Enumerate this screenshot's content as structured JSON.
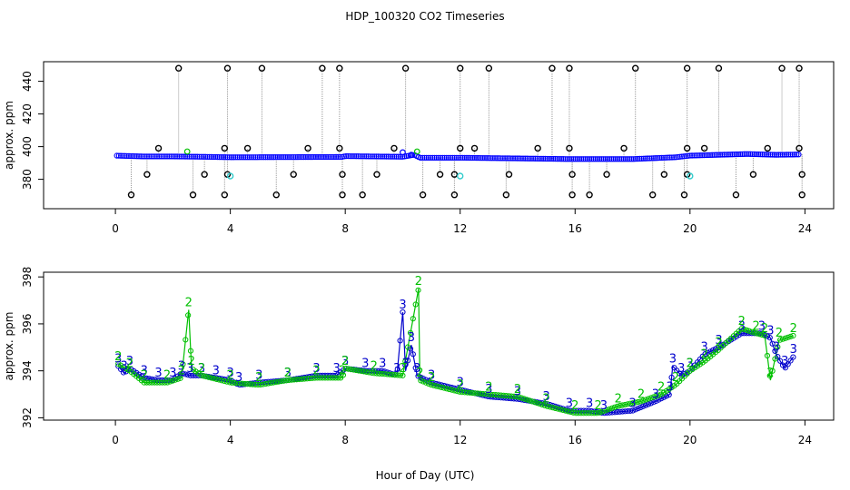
{
  "colors": {
    "background": "#ffffff",
    "instr1_points": "#0000ff",
    "instr2_points": "#00c000",
    "instr3_points": "#0000cc",
    "cal_black": "#000000",
    "cal_cyan": "#33cccc",
    "connector": "#999999"
  },
  "chart_data": {
    "type": "scatter",
    "title": "HDP_100320  CO2 Timeseries",
    "xlabel": "Hour of Day (UTC)",
    "panels": [
      {
        "name": "top",
        "ylabel": "approx. ppm",
        "xlim": [
          -2.5,
          25
        ],
        "ylim": [
          362,
          452
        ],
        "x_ticks": [
          0,
          4,
          8,
          12,
          16,
          20,
          24
        ],
        "y_ticks": [
          380,
          400,
          420,
          440
        ],
        "baseline": [
          [
            0,
            394.5
          ],
          [
            1,
            394
          ],
          [
            2,
            394
          ],
          [
            3,
            393.8
          ],
          [
            4,
            393.5
          ],
          [
            6,
            393.6
          ],
          [
            7.9,
            393.7
          ],
          [
            8,
            394.2
          ],
          [
            9,
            394
          ],
          [
            10,
            393.8
          ],
          [
            10.4,
            395
          ],
          [
            10.6,
            393.2
          ],
          [
            12,
            393.2
          ],
          [
            14,
            392.8
          ],
          [
            15.8,
            392.4
          ],
          [
            16.5,
            392.4
          ],
          [
            18,
            392.4
          ],
          [
            19.5,
            393.5
          ],
          [
            20,
            394.5
          ],
          [
            21,
            395
          ],
          [
            22,
            395.5
          ],
          [
            23,
            395
          ],
          [
            23.8,
            395.2
          ]
        ],
        "cal_high": [
          2.2,
          3.9,
          5.1,
          7.2,
          7.8,
          10.1,
          12.0,
          13.0,
          15.2,
          15.8,
          18.1,
          19.9,
          21.0,
          23.2,
          23.8
        ],
        "cal_high_value": 448,
        "cal_mid": [
          1.5,
          3.8,
          4.6,
          6.7,
          7.8,
          9.7,
          12.0,
          12.5,
          14.7,
          15.8,
          17.7,
          19.9,
          20.5,
          22.7,
          23.8
        ],
        "cal_mid_value": 399,
        "cal_low1": [
          1.1,
          3.1,
          3.9,
          6.2,
          7.9,
          9.1,
          11.3,
          11.8,
          13.7,
          15.9,
          17.1,
          19.1,
          19.9,
          22.2,
          23.9
        ],
        "cal_low1_value": 383,
        "cal_low2": [
          0.55,
          2.7,
          3.8,
          5.6,
          7.9,
          8.6,
          10.7,
          11.8,
          13.6,
          15.9,
          16.5,
          18.7,
          19.8,
          21.6,
          23.9
        ],
        "cal_low2_value": 370.5,
        "cyan_points": [
          [
            4.0,
            382
          ],
          [
            12.0,
            382
          ],
          [
            20.0,
            382
          ]
        ],
        "green_spikes": [
          [
            2.5,
            397
          ],
          [
            10.5,
            397
          ]
        ],
        "blue_spikes": [
          [
            10.0,
            396.5
          ],
          [
            10.3,
            395
          ]
        ]
      },
      {
        "name": "bottom",
        "ylabel": "approx. ppm",
        "xlim": [
          -2.5,
          25
        ],
        "ylim": [
          391.9,
          398.2
        ],
        "x_ticks": [
          0,
          4,
          8,
          12,
          16,
          20,
          24
        ],
        "y_ticks": [
          392,
          394,
          396,
          398
        ],
        "series": [
          {
            "name": "3",
            "marker": "3",
            "points": [
              [
                0.1,
                394.2
              ],
              [
                0.3,
                393.9
              ],
              [
                0.5,
                394.1
              ],
              [
                1,
                393.7
              ],
              [
                1.5,
                393.6
              ],
              [
                2,
                393.6
              ],
              [
                2.3,
                393.9
              ],
              [
                2.6,
                393.8
              ],
              [
                3,
                393.8
              ],
              [
                3.5,
                393.7
              ],
              [
                4,
                393.6
              ],
              [
                4.3,
                393.4
              ],
              [
                5,
                393.5
              ],
              [
                6,
                393.6
              ],
              [
                7,
                393.8
              ],
              [
                7.7,
                393.8
              ],
              [
                8,
                394.1
              ],
              [
                8.7,
                394.0
              ],
              [
                9.3,
                394.0
              ],
              [
                9.8,
                393.8
              ],
              [
                10.0,
                396.5
              ],
              [
                10.1,
                394.0
              ],
              [
                10.3,
                395.1
              ],
              [
                10.5,
                393.8
              ],
              [
                11,
                393.5
              ],
              [
                12,
                393.2
              ],
              [
                13,
                392.9
              ],
              [
                14,
                392.8
              ],
              [
                15,
                392.6
              ],
              [
                15.8,
                392.3
              ],
              [
                16.5,
                392.3
              ],
              [
                17,
                392.2
              ],
              [
                18,
                392.3
              ],
              [
                18.8,
                392.7
              ],
              [
                19.3,
                393.0
              ],
              [
                19.4,
                394.2
              ],
              [
                19.7,
                393.8
              ],
              [
                20,
                394.0
              ],
              [
                20.5,
                394.7
              ],
              [
                21,
                395.0
              ],
              [
                21.8,
                395.6
              ],
              [
                22.5,
                395.6
              ],
              [
                22.8,
                395.4
              ],
              [
                23,
                394.7
              ],
              [
                23.3,
                394.1
              ],
              [
                23.6,
                394.6
              ]
            ]
          },
          {
            "name": "2",
            "marker": "2",
            "points": [
              [
                0.1,
                394.3
              ],
              [
                0.5,
                394.0
              ],
              [
                1,
                393.5
              ],
              [
                1.8,
                393.5
              ],
              [
                2.3,
                393.7
              ],
              [
                2.55,
                396.6
              ],
              [
                2.65,
                394.1
              ],
              [
                3,
                393.8
              ],
              [
                4,
                393.5
              ],
              [
                5,
                393.4
              ],
              [
                6,
                393.6
              ],
              [
                7,
                393.7
              ],
              [
                7.9,
                393.7
              ],
              [
                8,
                394.1
              ],
              [
                9,
                393.9
              ],
              [
                10,
                393.8
              ],
              [
                10.55,
                397.5
              ],
              [
                10.6,
                393.6
              ],
              [
                11,
                393.4
              ],
              [
                12,
                393.1
              ],
              [
                13,
                393.0
              ],
              [
                14,
                392.9
              ],
              [
                15,
                392.5
              ],
              [
                16,
                392.2
              ],
              [
                16.8,
                392.2
              ],
              [
                17.5,
                392.5
              ],
              [
                18.3,
                392.7
              ],
              [
                19,
                393.0
              ],
              [
                19.5,
                393.4
              ],
              [
                20,
                394.0
              ],
              [
                20.5,
                394.4
              ],
              [
                21,
                394.9
              ],
              [
                21.8,
                395.8
              ],
              [
                22.3,
                395.6
              ],
              [
                22.6,
                395.5
              ],
              [
                22.8,
                393.6
              ],
              [
                23.1,
                395.3
              ],
              [
                23.6,
                395.5
              ]
            ]
          }
        ]
      }
    ]
  }
}
